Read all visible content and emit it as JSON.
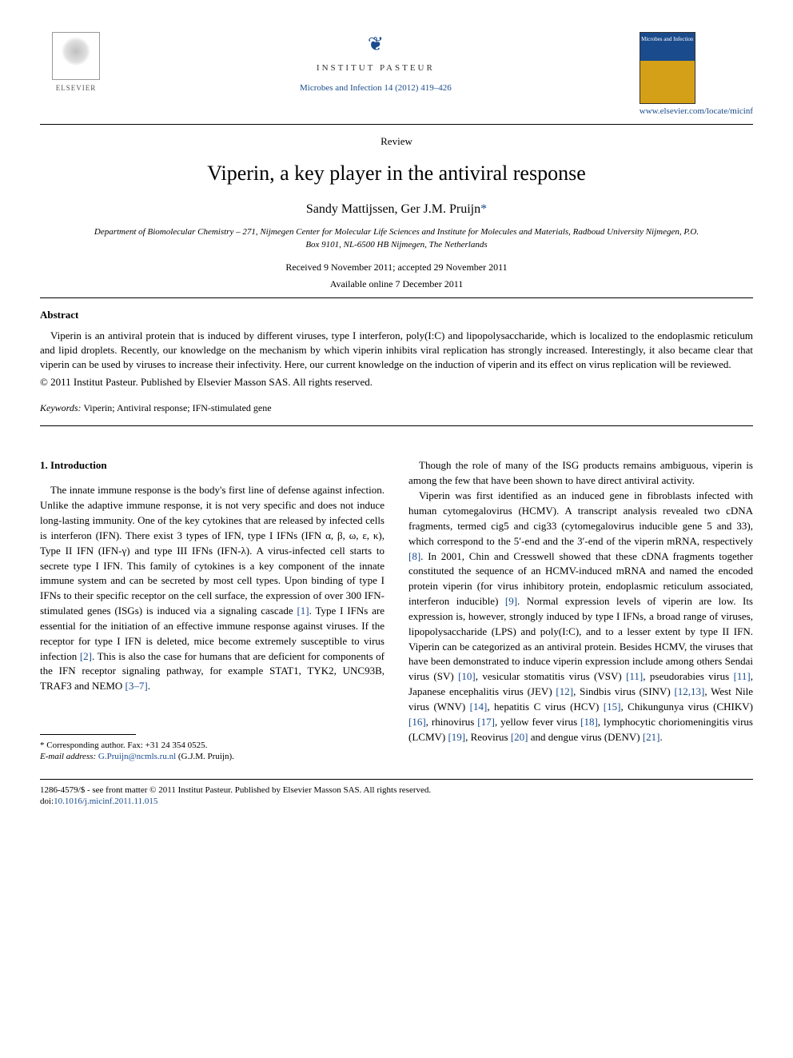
{
  "header": {
    "publisher_name": "ELSEVIER",
    "institute_name": "INSTITUT PASTEUR",
    "citation": "Microbes and Infection 14 (2012) 419–426",
    "journal_url": "www.elsevier.com/locate/micinf",
    "journal_cover_title": "Microbes and Infection"
  },
  "article": {
    "type": "Review",
    "title": "Viperin, a key player in the antiviral response",
    "authors": "Sandy Mattijssen, Ger J.M. Pruijn",
    "corresponding_marker": "*",
    "affiliation": "Department of Biomolecular Chemistry – 271, Nijmegen Center for Molecular Life Sciences and Institute for Molecules and Materials, Radboud University Nijmegen, P.O. Box 9101, NL-6500 HB Nijmegen, The Netherlands",
    "received": "Received 9 November 2011; accepted 29 November 2011",
    "available": "Available online 7 December 2011"
  },
  "abstract": {
    "heading": "Abstract",
    "text": "Viperin is an antiviral protein that is induced by different viruses, type I interferon, poly(I:C) and lipopolysaccharide, which is localized to the endoplasmic reticulum and lipid droplets. Recently, our knowledge on the mechanism by which viperin inhibits viral replication has strongly increased. Interestingly, it also became clear that viperin can be used by viruses to increase their infectivity. Here, our current knowledge on the induction of viperin and its effect on virus replication will be reviewed.",
    "copyright": "© 2011 Institut Pasteur. Published by Elsevier Masson SAS. All rights reserved."
  },
  "keywords": {
    "label": "Keywords:",
    "text": " Viperin; Antiviral response; IFN-stimulated gene"
  },
  "body": {
    "section_heading": "1. Introduction",
    "col1_p1": "The innate immune response is the body's first line of defense against infection. Unlike the adaptive immune response, it is not very specific and does not induce long-lasting immunity. One of the key cytokines that are released by infected cells is interferon (IFN). There exist 3 types of IFN, type I IFNs (IFN α, β, ω, ε, κ), Type II IFN (IFN-γ) and type III IFNs (IFN-λ). A virus-infected cell starts to secrete type I IFN. This family of cytokines is a key component of the innate immune system and can be secreted by most cell types. Upon binding of type I IFNs to their specific receptor on the cell surface, the expression of over 300 IFN-stimulated genes (ISGs) is induced via a signaling cascade ",
    "ref1": "[1]",
    "col1_p1b": ". Type I IFNs are essential for the initiation of an effective immune response against viruses. If the receptor for type I IFN is deleted, mice become extremely susceptible to virus infection ",
    "ref2": "[2]",
    "col1_p1c": ". This is also the case for humans that are deficient for components of the IFN receptor signaling pathway, for example STAT1, TYK2, UNC93B, TRAF3 and NEMO ",
    "ref3_7": "[3–7]",
    "col1_p1d": ".",
    "col2_p1": "Though the role of many of the ISG products remains ambiguous, viperin is among the few that have been shown to have direct antiviral activity.",
    "col2_p2a": "Viperin was first identified as an induced gene in fibroblasts infected with human cytomegalovirus (HCMV). A transcript analysis revealed two cDNA fragments, termed cig5 and cig33 (cytomegalovirus inducible gene 5 and 33), which correspond to the 5′-end and the 3′-end of the viperin mRNA, respectively ",
    "ref8": "[8]",
    "col2_p2b": ". In 2001, Chin and Cresswell showed that these cDNA fragments together constituted the sequence of an HCMV-induced mRNA and named the encoded protein viperin (for virus inhibitory protein, endoplasmic reticulum associated, interferon inducible) ",
    "ref9": "[9]",
    "col2_p2c": ". Normal expression levels of viperin are low. Its expression is, however, strongly induced by type I IFNs, a broad range of viruses, lipopolysaccharide (LPS) and poly(I:C), and to a lesser extent by type II IFN. Viperin can be categorized as an antiviral protein. Besides HCMV, the viruses that have been demonstrated to induce viperin expression include among others Sendai virus (SV) ",
    "ref10": "[10]",
    "col2_p2d": ", vesicular stomatitis virus (VSV) ",
    "ref11": "[11]",
    "col2_p2e": ", pseudorabies virus ",
    "ref11b": "[11]",
    "col2_p2f": ", Japanese encephalitis virus (JEV) ",
    "ref12": "[12]",
    "col2_p2g": ", Sindbis virus (SINV) ",
    "ref12_13": "[12,13]",
    "col2_p2h": ", West Nile virus (WNV) ",
    "ref14": "[14]",
    "col2_p2i": ", hepatitis C virus (HCV) ",
    "ref15": "[15]",
    "col2_p2j": ", Chikungunya virus (CHIKV) ",
    "ref16": "[16]",
    "col2_p2k": ", rhinovirus ",
    "ref17": "[17]",
    "col2_p2l": ", yellow fever virus ",
    "ref18": "[18]",
    "col2_p2m": ", lymphocytic choriomeningitis virus (LCMV) ",
    "ref19": "[19]",
    "col2_p2n": ", Reovirus ",
    "ref20": "[20]",
    "col2_p2o": " and dengue virus (DENV) ",
    "ref21": "[21]",
    "col2_p2p": "."
  },
  "footnote": {
    "corresponding": "* Corresponding author. Fax: +31 24 354 0525.",
    "email_label": "E-mail address: ",
    "email": "G.Pruijn@ncmls.ru.nl",
    "email_name": " (G.J.M. Pruijn)."
  },
  "footer": {
    "issn_line": "1286-4579/$ - see front matter © 2011 Institut Pasteur. Published by Elsevier Masson SAS. All rights reserved.",
    "doi_label": "doi:",
    "doi": "10.1016/j.micinf.2011.11.015"
  },
  "colors": {
    "link": "#1a4b8c",
    "text": "#000000"
  }
}
